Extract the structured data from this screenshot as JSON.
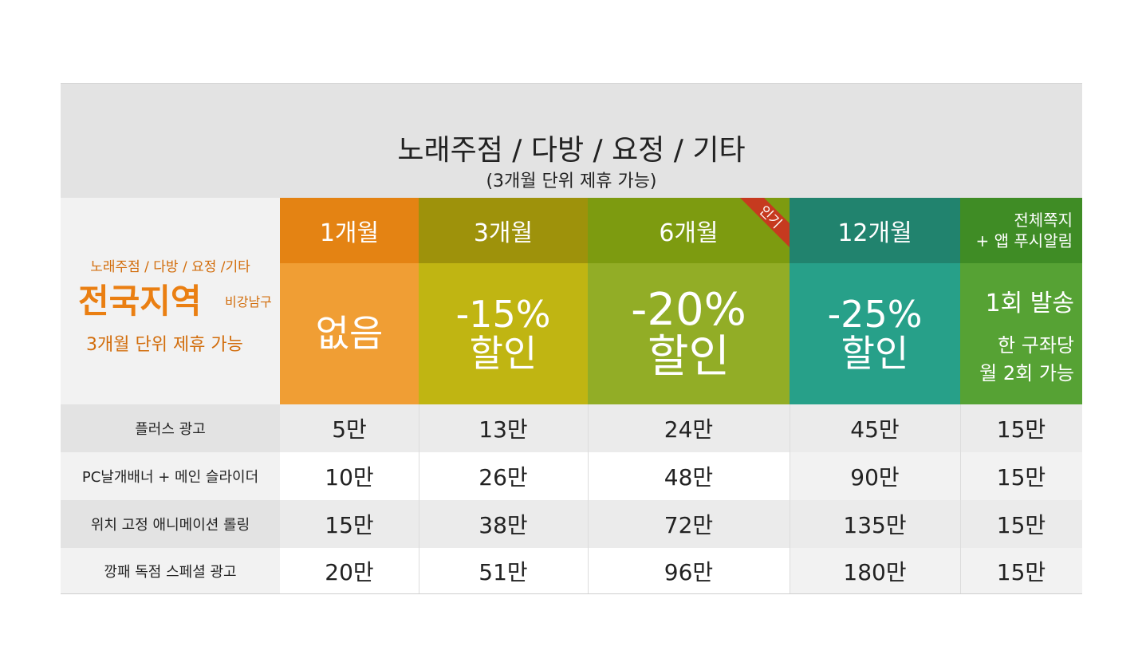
{
  "header": {
    "title": "노래주점 / 다방 / 요정 / 기타",
    "subtitle": "(3개월 단위 제휴 가능)"
  },
  "left_panel": {
    "category": "노래주점 / 다방 / 요정 /기타",
    "region": "전국지역",
    "region_suffix": "비강남구",
    "note": "3개월 단위 제휴 가능"
  },
  "plans": [
    {
      "period": "1개월",
      "discount_line1": "없음",
      "discount_line2": ""
    },
    {
      "period": "3개월",
      "discount_line1": "-15%",
      "discount_line2": "할인"
    },
    {
      "period": "6개월",
      "discount_line1": "-20%",
      "discount_line2": "할인",
      "badge": "인기"
    },
    {
      "period": "12개월",
      "discount_line1": "-25%",
      "discount_line2": "할인"
    },
    {
      "period_line1": "전체쪽지",
      "period_line2": "+ 앱 푸시알림",
      "detail_line1": "1회 발송",
      "detail_line2": "한 구좌당",
      "detail_line3": "월 2회 가능"
    }
  ],
  "rows": [
    {
      "label": "플러스 광고",
      "prices": [
        "5만",
        "13만",
        "24만",
        "45만",
        "15만"
      ]
    },
    {
      "label": "PC날개배너 + 메인 슬라이더",
      "prices": [
        "10만",
        "26만",
        "48만",
        "90만",
        "15만"
      ]
    },
    {
      "label": "위치 고정 애니메이션 롤링",
      "prices": [
        "15만",
        "38만",
        "72만",
        "135만",
        "15만"
      ]
    },
    {
      "label": "깡패 독점 스페셜 광고",
      "prices": [
        "20만",
        "51만",
        "96만",
        "180만",
        "15만"
      ]
    }
  ],
  "colors": {
    "header_bg": "#e3e3e3",
    "col1_top": "#e48313",
    "col1_body": "#f09e34",
    "col2_top": "#9e920b",
    "col2_body": "#c0b512",
    "col3_top": "#7d9b10",
    "col3_body": "#92ad26",
    "col4_top": "#21836e",
    "col4_body": "#27a089",
    "col5_top": "#3f8c25",
    "col5_body": "#56a234",
    "badge": "#c63a1f"
  }
}
